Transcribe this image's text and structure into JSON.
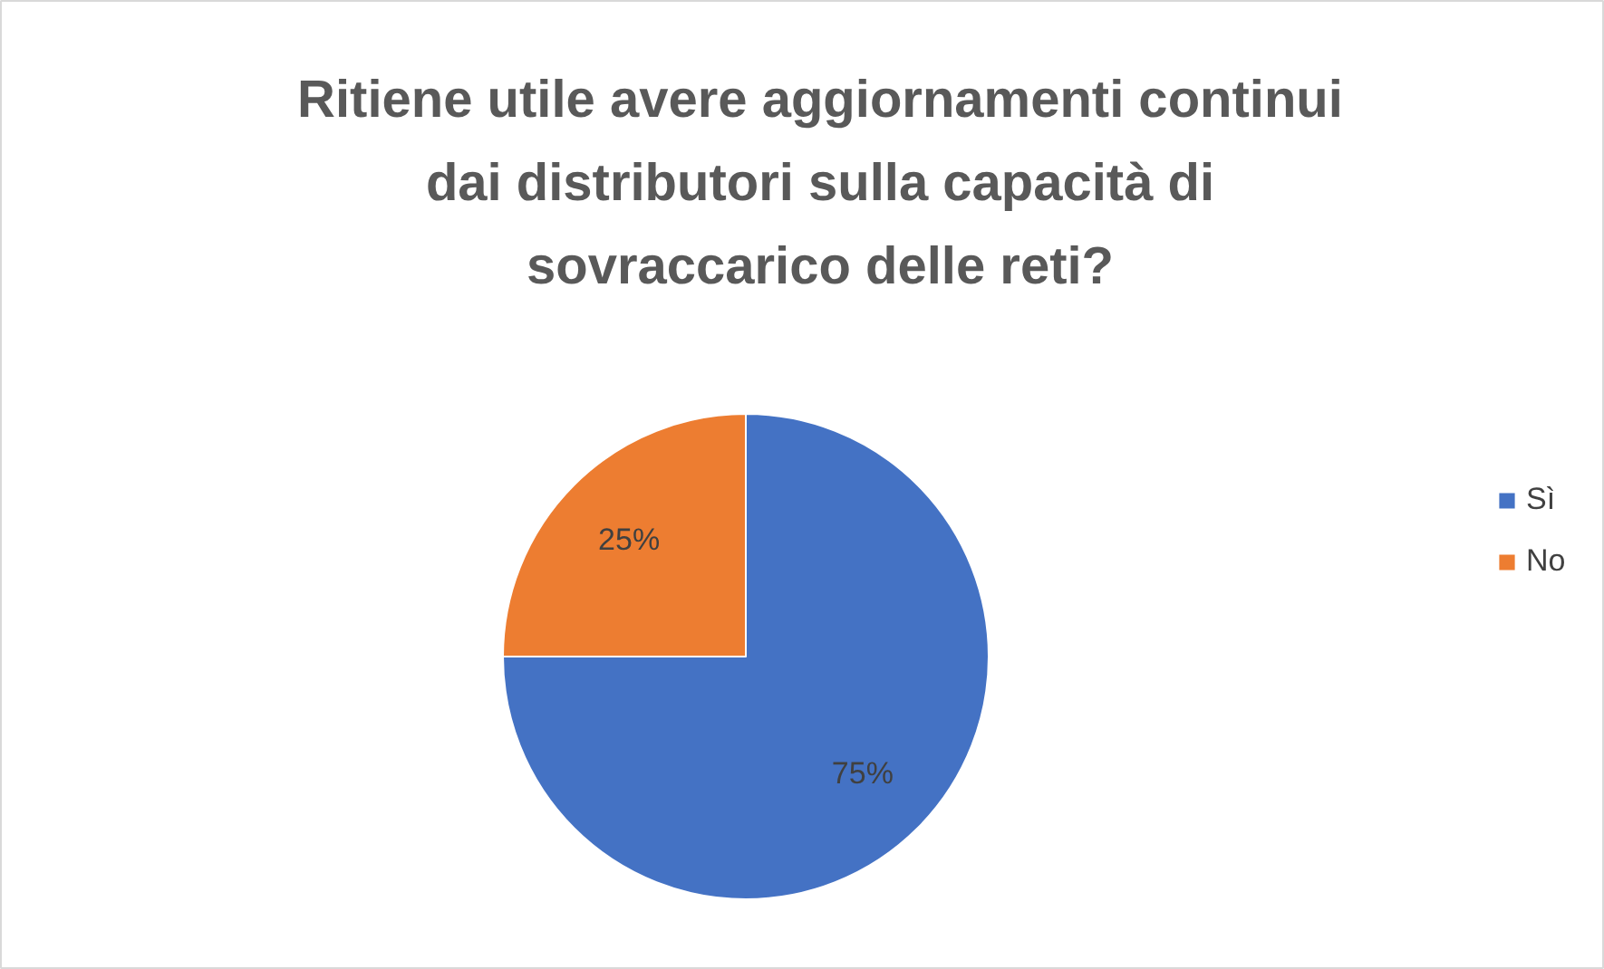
{
  "chart_data": {
    "type": "pie",
    "title": "Ritiene utile avere aggiornamenti continui\ndai distributori sulla capacità di\nsovraccarico delle reti?",
    "categories": [
      "Sì",
      "No"
    ],
    "values": [
      75,
      25
    ],
    "colors": [
      "#4472c4",
      "#ed7d31"
    ],
    "value_labels": [
      "75%",
      "25%"
    ],
    "legend": "right"
  }
}
